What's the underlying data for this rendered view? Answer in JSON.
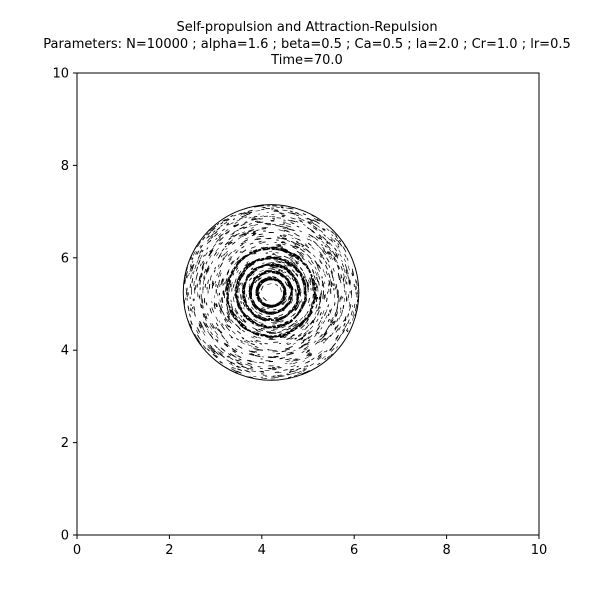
{
  "chart_data": {
    "type": "scatter",
    "title": "Self-propulsion and Attraction-Repulsion",
    "subtitle": "Parameters: N=10000 ; alpha=1.6 ; beta=0.5 ; Ca=0.5 ; la=2.0 ; Cr=1.0 ; lr=0.5",
    "time_label": "Time=70.0",
    "xlabel": "",
    "ylabel": "",
    "xlim": [
      0,
      10
    ],
    "ylim": [
      0,
      10
    ],
    "x_ticks": [
      0,
      2,
      4,
      6,
      8,
      10
    ],
    "y_ticks": [
      0,
      2,
      4,
      6,
      8,
      10
    ],
    "x_tick_labels": [
      "0",
      "2",
      "4",
      "6",
      "8",
      "10"
    ],
    "y_tick_labels": [
      "0",
      "2",
      "4",
      "6",
      "8",
      "10"
    ],
    "grid": false,
    "marker_color": "#000000",
    "swarm": {
      "center": [
        4.2,
        5.25
      ],
      "outer_radius": 1.9,
      "inner_hole_radius": 0.18,
      "dense_rings": [
        0.3,
        0.45,
        0.6,
        0.75,
        0.95
      ]
    }
  }
}
